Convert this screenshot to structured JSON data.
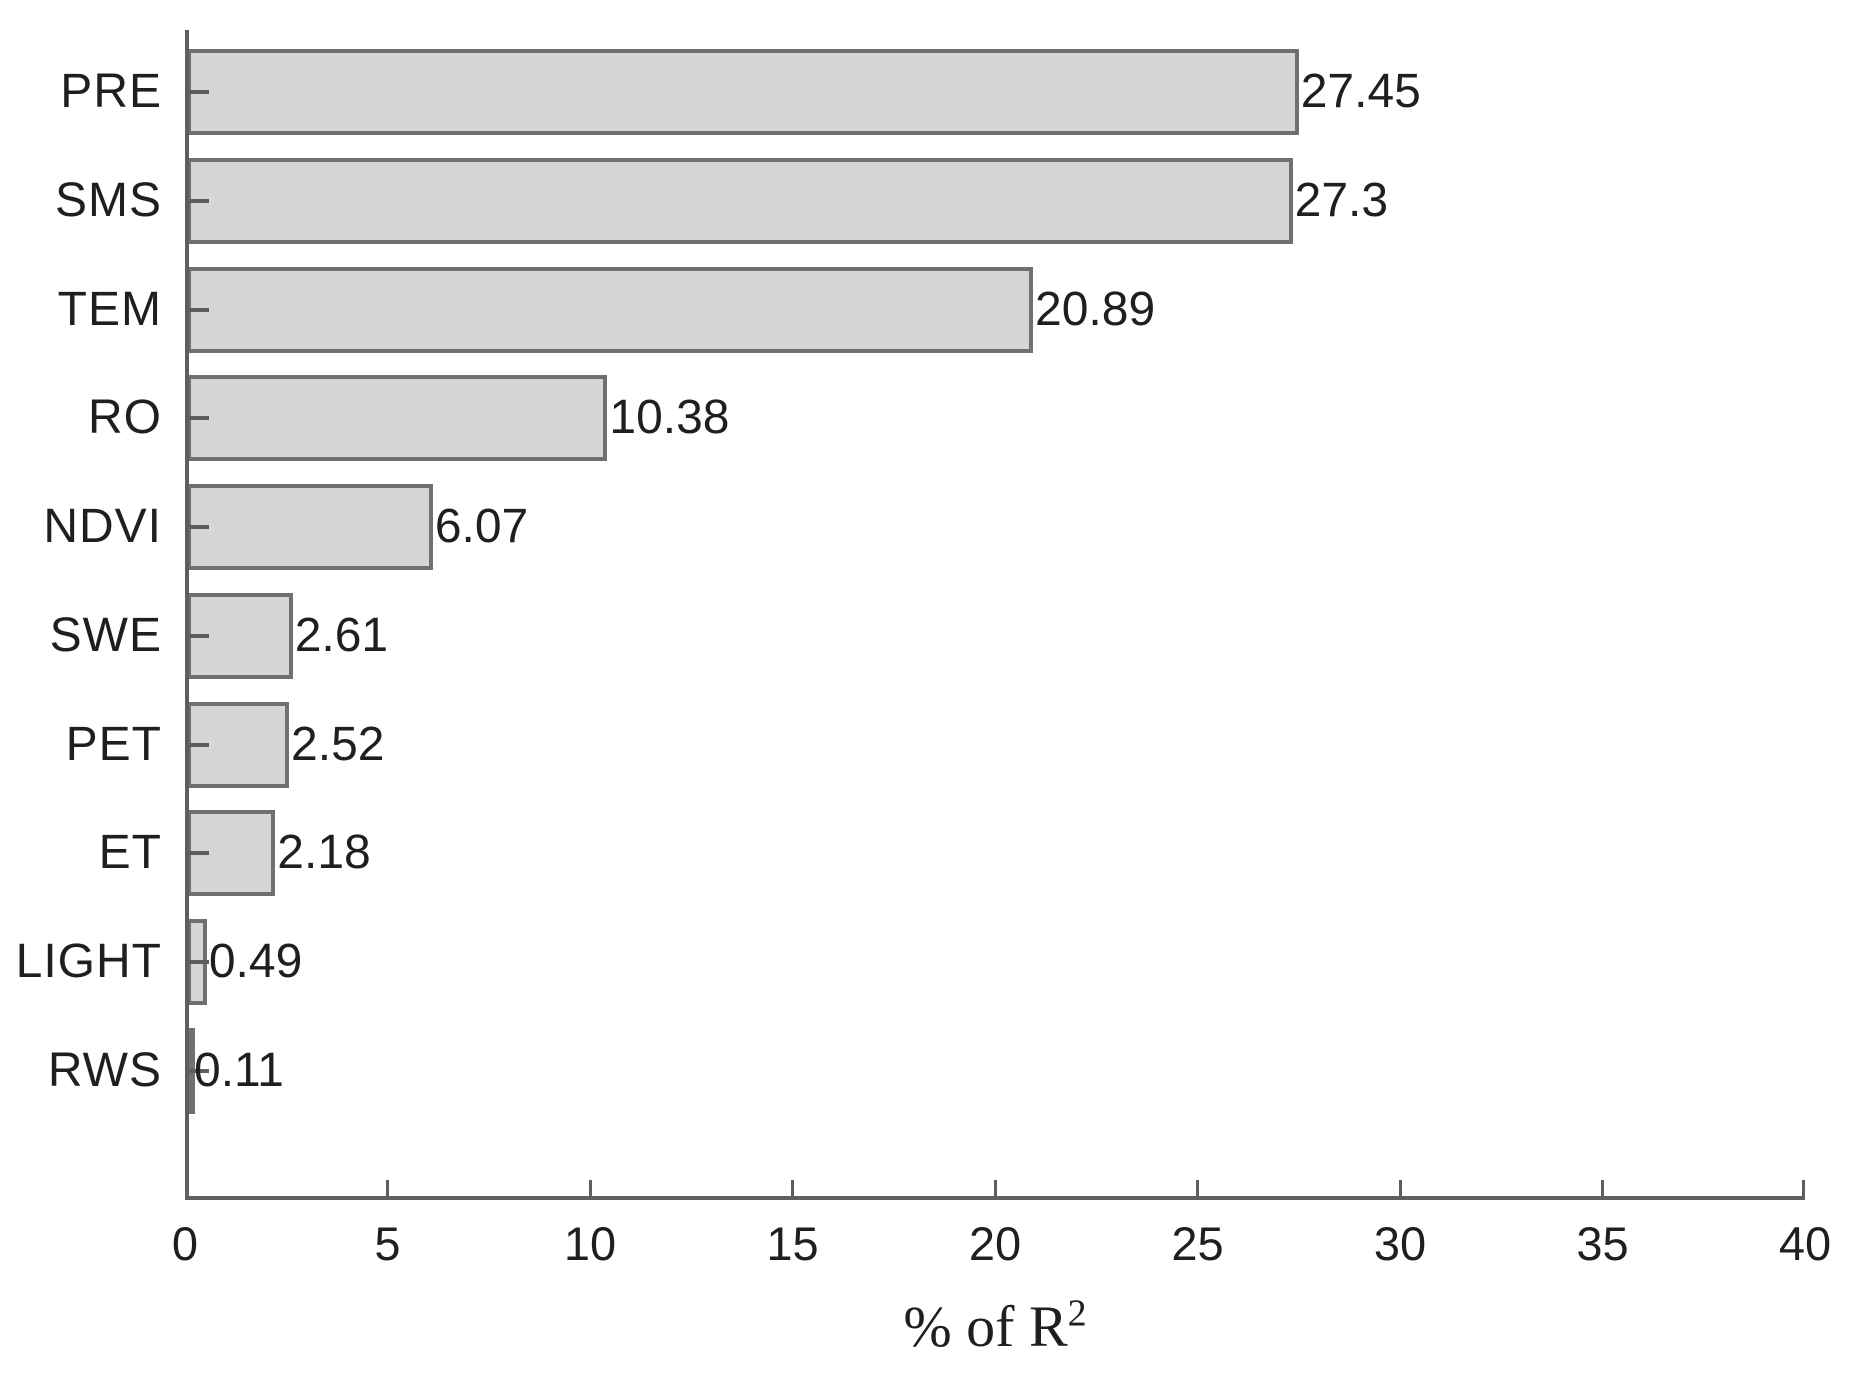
{
  "figure": {
    "background": "#ffffff"
  },
  "chart_data": {
    "type": "bar",
    "orientation": "horizontal",
    "title": "",
    "categories": [
      "PRE",
      "SMS",
      "TEM",
      "RO",
      "NDVI",
      "SWE",
      "PET",
      "ET",
      "LIGHT",
      "RWS"
    ],
    "values": [
      27.45,
      27.3,
      20.89,
      10.38,
      6.07,
      2.61,
      2.52,
      2.18,
      0.49,
      0.11
    ],
    "value_labels": [
      "27.45",
      "27.3",
      "20.89",
      "10.38",
      "6.07",
      "2.61",
      "2.52",
      "2.18",
      "0.49",
      "0.11"
    ],
    "xlabel": "% of R²",
    "xlabel_prefix": "% of R",
    "xlabel_sup": "2",
    "ylabel": "",
    "xlim": [
      0,
      40
    ],
    "x_ticks": [
      "0",
      "5",
      "10",
      "15",
      "20",
      "25",
      "30",
      "35",
      "40"
    ],
    "grid": false,
    "legend": null,
    "legend_position": "none",
    "colors": {
      "bar_fill": "#d6d6d6",
      "bar_border": "#707070",
      "axis": "#5e5e5e",
      "text": "#1f1f1f"
    }
  }
}
